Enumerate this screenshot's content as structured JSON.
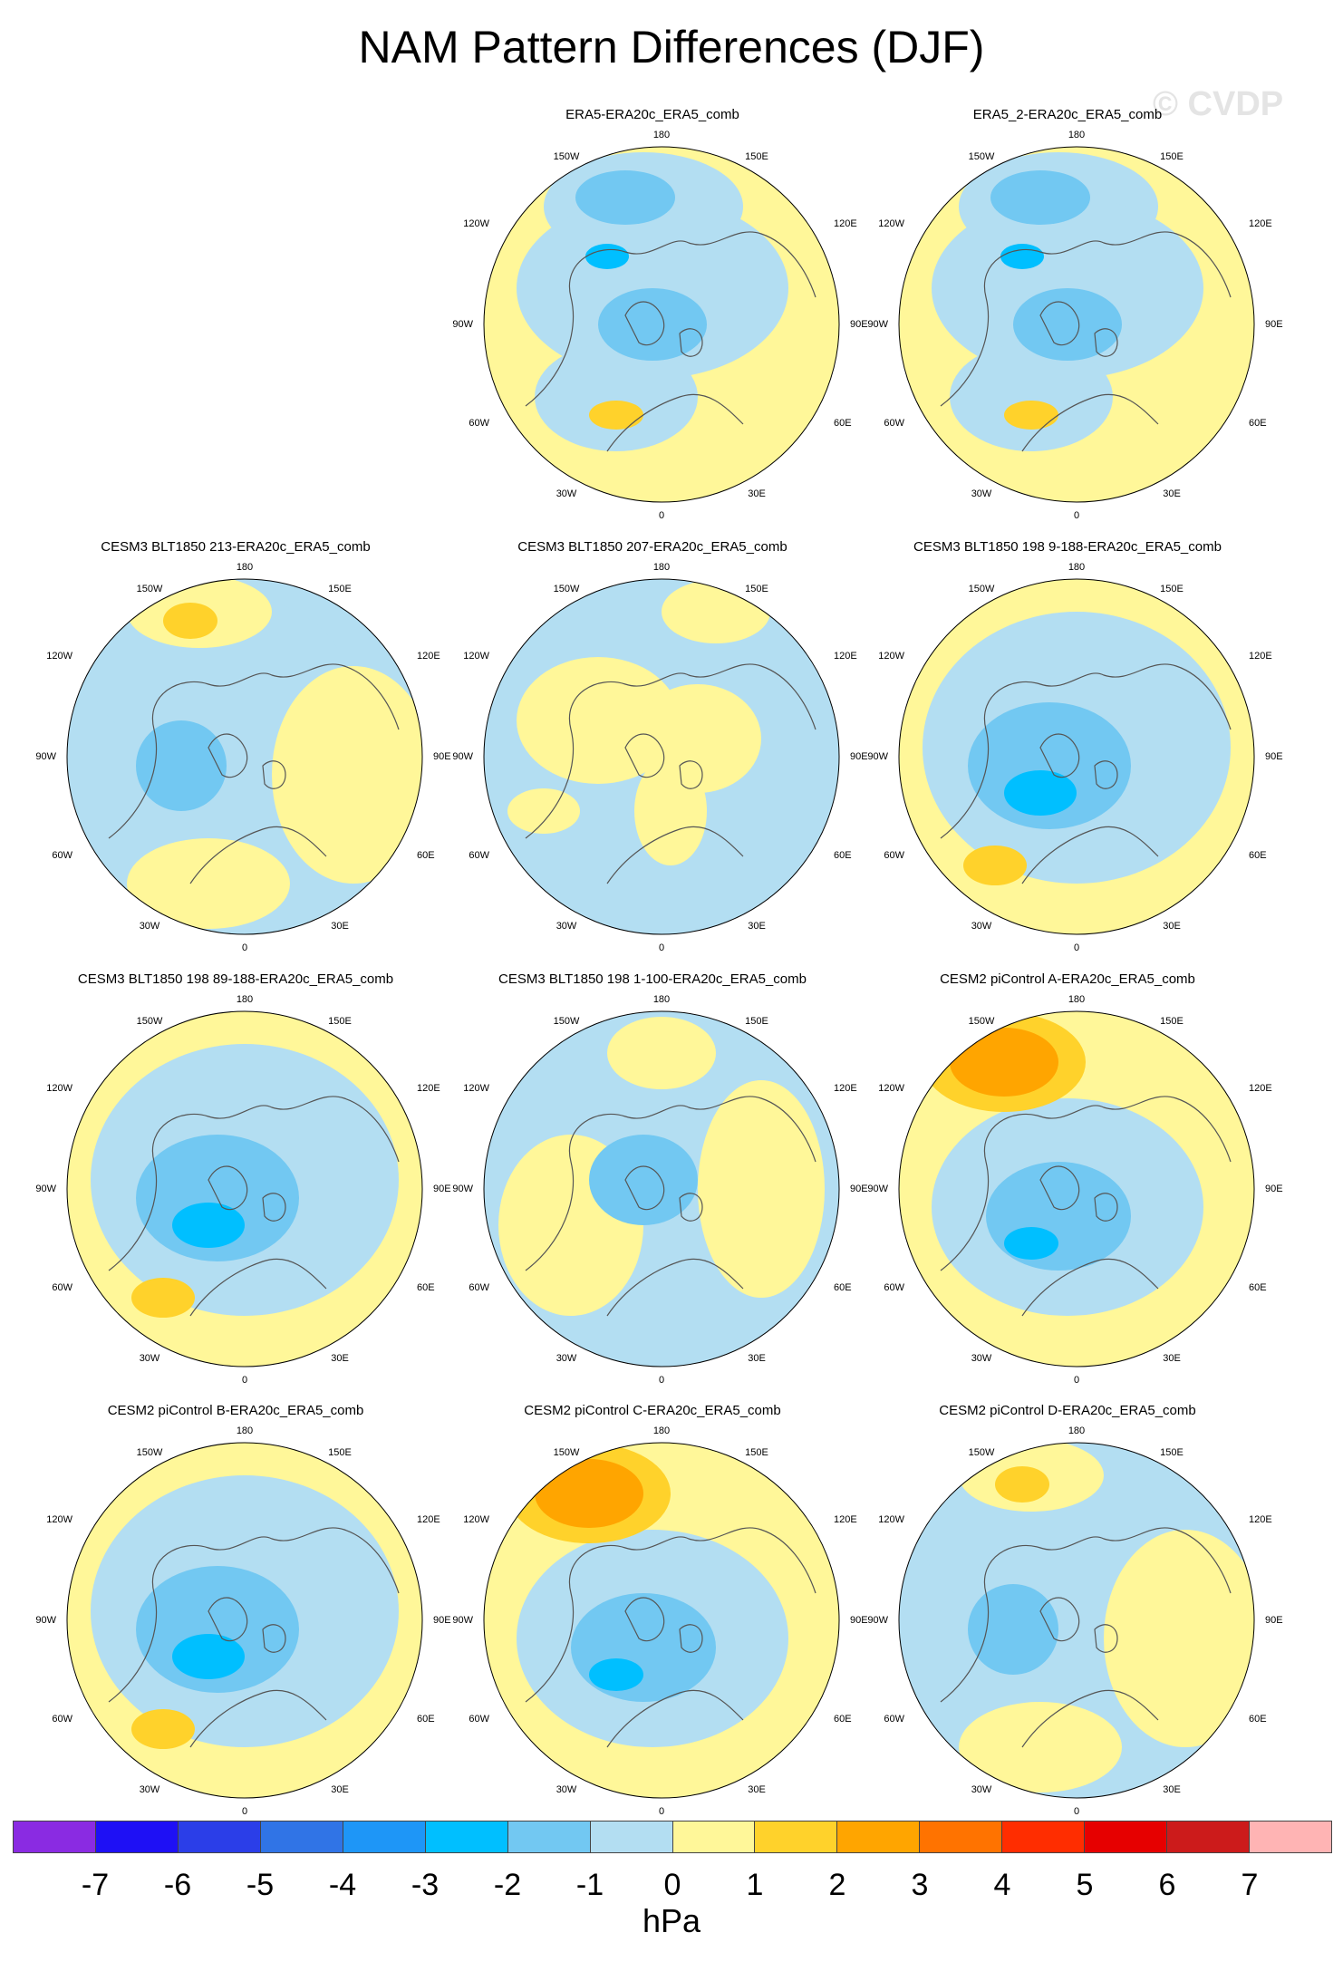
{
  "title": "NAM Pattern Differences (DJF)",
  "watermark": "© CVDP",
  "longitude_labels": {
    "n": "180",
    "nnw": "150W",
    "nne": "150E",
    "wnw": "120W",
    "ene": "120E",
    "w": "90W",
    "e": "90E",
    "wsw": "60W",
    "ese": "60E",
    "ssw": "30W",
    "sse": "30E",
    "s": "0"
  },
  "panels": [
    {
      "title": "ERA5-ERA20c_ERA5_comb",
      "pattern": "anom-weak-pacific-low"
    },
    {
      "title": "ERA5_2-ERA20c_ERA5_comb",
      "pattern": "anom-weak-pacific-low"
    },
    {
      "title": "CESM3 BLT1850 213-ERA20c_ERA5_comb",
      "pattern": "anom-pacific-high"
    },
    {
      "title": "CESM3 BLT1850 207-ERA20c_ERA5_comb",
      "pattern": "anom-mostly-negative"
    },
    {
      "title": "CESM3 BLT1850 198 9-188-ERA20c_ERA5_comb",
      "pattern": "anom-arctic-low"
    },
    {
      "title": "CESM3 BLT1850 198 89-188-ERA20c_ERA5_comb",
      "pattern": "anom-arctic-low"
    },
    {
      "title": "CESM3 BLT1850 198 1-100-ERA20c_ERA5_comb",
      "pattern": "anom-weak-arctic-low"
    },
    {
      "title": "CESM2 piControl A-ERA20c_ERA5_comb",
      "pattern": "anom-strong-pacific-high"
    },
    {
      "title": "CESM2 piControl B-ERA20c_ERA5_comb",
      "pattern": "anom-arctic-low"
    },
    {
      "title": "CESM2 piControl C-ERA20c_ERA5_comb",
      "pattern": "anom-strong-pacific-high"
    },
    {
      "title": "CESM2 piControl D-ERA20c_ERA5_comb",
      "pattern": "anom-pacific-high"
    }
  ],
  "colorbar": {
    "colors": [
      "#8a2be2",
      "#1e10f5",
      "#2b3ee8",
      "#3074e6",
      "#1e96f7",
      "#00bfff",
      "#72c8f2",
      "#b3def2",
      "#fff799",
      "#ffd22b",
      "#ffa500",
      "#ff7300",
      "#ff2d00",
      "#e60000",
      "#cc1b1b",
      "#ffb4b4"
    ],
    "labels": [
      "-7",
      "-6",
      "-5",
      "-4",
      "-3",
      "-2",
      "-1",
      "0",
      "1",
      "2",
      "3",
      "4",
      "5",
      "6",
      "7"
    ],
    "units": "hPa"
  },
  "legend_placement": "bottom"
}
